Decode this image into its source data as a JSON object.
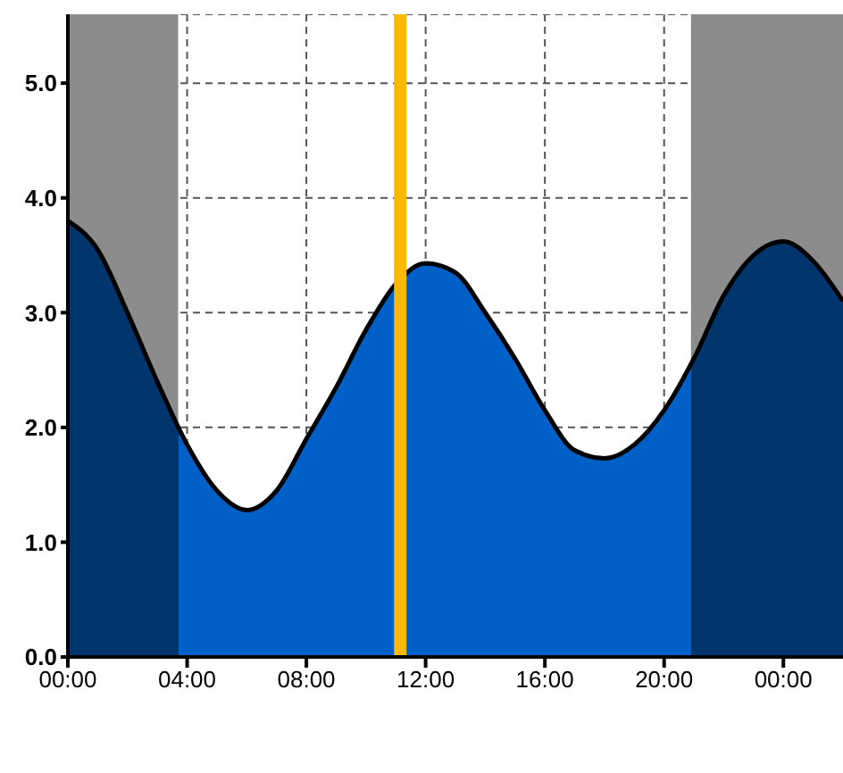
{
  "chart_data": {
    "type": "area",
    "x": [
      0,
      1,
      2,
      3,
      4,
      5,
      6,
      7,
      8,
      9,
      10,
      11,
      12,
      13,
      14,
      15,
      16,
      17,
      18,
      19,
      20,
      21,
      22,
      23,
      24,
      25,
      26
    ],
    "series": [
      {
        "color": "#0060c8",
        "values": [
          3.8,
          3.55,
          3.0,
          2.4,
          1.85,
          1.45,
          1.28,
          1.45,
          1.9,
          2.35,
          2.85,
          3.25,
          3.43,
          3.35,
          3.0,
          2.6,
          2.15,
          1.8,
          1.73,
          1.85,
          2.15,
          2.6,
          3.15,
          3.5,
          3.62,
          3.45,
          3.1
        ]
      }
    ],
    "xlim": [
      0,
      26
    ],
    "ylim": [
      0,
      5.6
    ],
    "xticks": [
      {
        "value": 0,
        "label": "00:00"
      },
      {
        "value": 4,
        "label": "04:00"
      },
      {
        "value": 8,
        "label": "08:00"
      },
      {
        "value": 12,
        "label": "12:00"
      },
      {
        "value": 16,
        "label": "16:00"
      },
      {
        "value": 20,
        "label": "20:00"
      },
      {
        "value": 24,
        "label": "00:00"
      }
    ],
    "yticks": [
      {
        "value": 0,
        "label": "0.0"
      },
      {
        "value": 1,
        "label": "1.0"
      },
      {
        "value": 2,
        "label": "2.0"
      },
      {
        "value": 3,
        "label": "3.0"
      },
      {
        "value": 4,
        "label": "4.0"
      },
      {
        "value": 5,
        "label": "5.0"
      }
    ],
    "bands": [
      {
        "axis": "x",
        "from": 0,
        "to": 3.7,
        "color": "#8c8c8c"
      },
      {
        "axis": "x",
        "from": 20.9,
        "to": 26,
        "color": "#8c8c8c"
      }
    ],
    "ref_lines": [
      {
        "axis": "x",
        "value": 11.15,
        "color": "#ffb800"
      }
    ],
    "grid": true,
    "legend": false
  }
}
